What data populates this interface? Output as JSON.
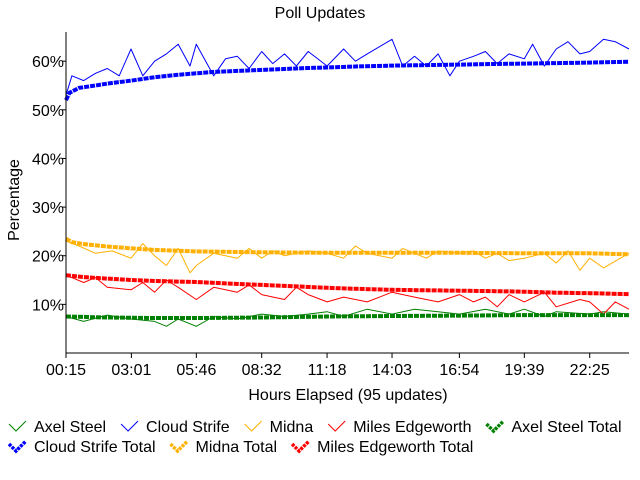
{
  "chart_data": {
    "type": "line",
    "title": "Poll Updates",
    "xlabel": "Hours Elapsed (95 updates)",
    "ylabel": "Percentage",
    "ylim": [
      0,
      66
    ],
    "xlim": [
      0.25,
      24.08
    ],
    "x_unit": "hours elapsed",
    "grid": false,
    "legend_position": "bottom",
    "x_tick_labels": [
      {
        "x": 0.25,
        "label": "00:15"
      },
      {
        "x": 3.017,
        "label": "03:01"
      },
      {
        "x": 5.767,
        "label": "05:46"
      },
      {
        "x": 8.533,
        "label": "08:32"
      },
      {
        "x": 11.3,
        "label": "11:18"
      },
      {
        "x": 14.05,
        "label": "14:03"
      },
      {
        "x": 16.9,
        "label": "16:54"
      },
      {
        "x": 19.65,
        "label": "19:39"
      },
      {
        "x": 22.417,
        "label": "22:25"
      }
    ],
    "y_ticks": [
      {
        "value": 10,
        "label": "10%"
      },
      {
        "value": 20,
        "label": "20%"
      },
      {
        "value": 30,
        "label": "30%"
      },
      {
        "value": 40,
        "label": "40%"
      },
      {
        "value": 50,
        "label": "50%"
      },
      {
        "value": 60,
        "label": "60%"
      }
    ],
    "series": [
      {
        "name": "Axel Steel",
        "kind": "update",
        "color": "#008000",
        "points": [
          [
            0.25,
            7.5
          ],
          [
            1.0,
            6.5
          ],
          [
            2.0,
            7.8
          ],
          [
            3.0,
            7.0
          ],
          [
            4.0,
            6.5
          ],
          [
            4.5,
            5.5
          ],
          [
            5.0,
            7.0
          ],
          [
            5.767,
            5.5
          ],
          [
            6.5,
            7.5
          ],
          [
            7.5,
            7.0
          ],
          [
            8.533,
            8.0
          ],
          [
            9.5,
            7.5
          ],
          [
            10.5,
            8.0
          ],
          [
            11.3,
            8.5
          ],
          [
            12.0,
            7.5
          ],
          [
            13.0,
            9.0
          ],
          [
            14.05,
            8.0
          ],
          [
            15.0,
            9.0
          ],
          [
            16.0,
            8.5
          ],
          [
            16.9,
            8.0
          ],
          [
            18.0,
            9.0
          ],
          [
            19.0,
            8.0
          ],
          [
            19.65,
            9.0
          ],
          [
            20.5,
            7.5
          ],
          [
            21.0,
            8.5
          ],
          [
            22.417,
            8.0
          ],
          [
            23.0,
            8.5
          ],
          [
            24.08,
            8.0
          ]
        ]
      },
      {
        "name": "Cloud Strife",
        "kind": "update",
        "color": "#0000ff",
        "points": [
          [
            0.25,
            53.0
          ],
          [
            0.5,
            57.0
          ],
          [
            1.0,
            56.0
          ],
          [
            1.5,
            57.5
          ],
          [
            2.0,
            58.5
          ],
          [
            2.5,
            57.0
          ],
          [
            3.0,
            62.5
          ],
          [
            3.5,
            57.0
          ],
          [
            4.0,
            60.0
          ],
          [
            4.5,
            61.5
          ],
          [
            5.0,
            63.5
          ],
          [
            5.5,
            59.0
          ],
          [
            5.767,
            63.5
          ],
          [
            6.5,
            57.0
          ],
          [
            7.0,
            60.5
          ],
          [
            7.5,
            61.0
          ],
          [
            8.0,
            58.5
          ],
          [
            8.533,
            62.0
          ],
          [
            9.0,
            59.5
          ],
          [
            9.5,
            61.5
          ],
          [
            10.0,
            59.0
          ],
          [
            10.5,
            62.0
          ],
          [
            11.3,
            59.0
          ],
          [
            12.0,
            62.5
          ],
          [
            12.5,
            60.0
          ],
          [
            13.0,
            61.5
          ],
          [
            14.05,
            64.5
          ],
          [
            14.5,
            59.0
          ],
          [
            15.0,
            61.0
          ],
          [
            15.5,
            59.0
          ],
          [
            16.0,
            61.5
          ],
          [
            16.5,
            57.0
          ],
          [
            16.9,
            60.0
          ],
          [
            17.5,
            61.0
          ],
          [
            18.0,
            62.0
          ],
          [
            18.5,
            59.5
          ],
          [
            19.0,
            61.5
          ],
          [
            19.65,
            60.5
          ],
          [
            20.0,
            63.5
          ],
          [
            20.5,
            59.0
          ],
          [
            21.0,
            62.5
          ],
          [
            21.5,
            64.0
          ],
          [
            22.0,
            61.5
          ],
          [
            22.417,
            62.0
          ],
          [
            23.0,
            64.5
          ],
          [
            23.5,
            64.0
          ],
          [
            24.08,
            62.5
          ]
        ]
      },
      {
        "name": "Midna",
        "kind": "update",
        "color": "#ffb000",
        "points": [
          [
            0.25,
            23.0
          ],
          [
            0.8,
            22.0
          ],
          [
            1.5,
            20.5
          ],
          [
            2.2,
            21.0
          ],
          [
            3.0,
            19.5
          ],
          [
            3.5,
            22.5
          ],
          [
            4.0,
            20.0
          ],
          [
            4.5,
            18.0
          ],
          [
            5.0,
            21.5
          ],
          [
            5.5,
            16.5
          ],
          [
            5.767,
            18.0
          ],
          [
            6.5,
            20.5
          ],
          [
            7.5,
            19.5
          ],
          [
            8.0,
            21.5
          ],
          [
            8.533,
            19.5
          ],
          [
            9.0,
            21.0
          ],
          [
            9.5,
            20.0
          ],
          [
            10.5,
            21.0
          ],
          [
            11.3,
            20.5
          ],
          [
            12.0,
            19.5
          ],
          [
            12.5,
            22.0
          ],
          [
            13.0,
            20.5
          ],
          [
            14.05,
            19.5
          ],
          [
            14.5,
            21.5
          ],
          [
            15.0,
            20.5
          ],
          [
            15.5,
            19.5
          ],
          [
            16.0,
            21.0
          ],
          [
            16.9,
            20.5
          ],
          [
            17.5,
            21.0
          ],
          [
            18.0,
            19.5
          ],
          [
            18.5,
            20.5
          ],
          [
            19.0,
            19.0
          ],
          [
            19.65,
            19.5
          ],
          [
            20.5,
            20.5
          ],
          [
            21.0,
            18.5
          ],
          [
            21.5,
            21.0
          ],
          [
            22.0,
            17.0
          ],
          [
            22.417,
            19.5
          ],
          [
            23.0,
            17.5
          ],
          [
            24.08,
            20.5
          ]
        ]
      },
      {
        "name": "Miles Edgeworth",
        "kind": "update",
        "color": "#ff0000",
        "points": [
          [
            0.25,
            16.0
          ],
          [
            1.0,
            14.5
          ],
          [
            1.5,
            15.5
          ],
          [
            2.0,
            13.5
          ],
          [
            3.0,
            13.0
          ],
          [
            3.5,
            14.5
          ],
          [
            4.0,
            12.5
          ],
          [
            4.5,
            15.0
          ],
          [
            5.0,
            13.5
          ],
          [
            5.767,
            11.0
          ],
          [
            6.5,
            13.5
          ],
          [
            7.5,
            12.5
          ],
          [
            8.0,
            14.0
          ],
          [
            8.533,
            12.0
          ],
          [
            9.5,
            11.0
          ],
          [
            10.0,
            13.5
          ],
          [
            10.5,
            12.0
          ],
          [
            11.3,
            10.5
          ],
          [
            12.0,
            11.5
          ],
          [
            13.0,
            10.5
          ],
          [
            14.05,
            12.5
          ],
          [
            15.0,
            11.5
          ],
          [
            16.0,
            10.5
          ],
          [
            16.9,
            12.0
          ],
          [
            17.5,
            10.5
          ],
          [
            18.0,
            11.5
          ],
          [
            18.5,
            9.5
          ],
          [
            19.0,
            12.0
          ],
          [
            19.65,
            10.5
          ],
          [
            20.5,
            12.5
          ],
          [
            21.0,
            9.5
          ],
          [
            22.0,
            11.0
          ],
          [
            22.417,
            10.5
          ],
          [
            23.0,
            8.0
          ],
          [
            23.5,
            10.5
          ],
          [
            24.08,
            9.0
          ]
        ]
      },
      {
        "name": "Axel Steel Total",
        "kind": "total",
        "color": "#008000",
        "points": [
          [
            0.25,
            7.5
          ],
          [
            2.0,
            7.3
          ],
          [
            4.0,
            7.2
          ],
          [
            6.0,
            7.2
          ],
          [
            8.533,
            7.3
          ],
          [
            11.3,
            7.5
          ],
          [
            14.05,
            7.6
          ],
          [
            16.9,
            7.7
          ],
          [
            19.65,
            7.8
          ],
          [
            22.417,
            7.8
          ],
          [
            24.08,
            7.8
          ]
        ]
      },
      {
        "name": "Cloud Strife Total",
        "kind": "total",
        "color": "#0000ff",
        "points": [
          [
            0.25,
            52.0
          ],
          [
            0.4,
            53.5
          ],
          [
            0.8,
            54.5
          ],
          [
            1.5,
            55.0
          ],
          [
            2.0,
            55.4
          ],
          [
            3.017,
            56.0
          ],
          [
            4.0,
            56.7
          ],
          [
            5.0,
            57.2
          ],
          [
            5.767,
            57.5
          ],
          [
            6.5,
            57.8
          ],
          [
            7.5,
            58.0
          ],
          [
            8.533,
            58.2
          ],
          [
            9.5,
            58.4
          ],
          [
            10.5,
            58.6
          ],
          [
            11.3,
            58.7
          ],
          [
            12.5,
            58.9
          ],
          [
            14.05,
            59.1
          ],
          [
            15.5,
            59.2
          ],
          [
            16.9,
            59.3
          ],
          [
            18.0,
            59.4
          ],
          [
            19.65,
            59.5
          ],
          [
            21.0,
            59.6
          ],
          [
            22.417,
            59.7
          ],
          [
            24.08,
            59.9
          ]
        ]
      },
      {
        "name": "Midna Total",
        "kind": "total",
        "color": "#ffb000",
        "points": [
          [
            0.25,
            23.5
          ],
          [
            0.5,
            22.8
          ],
          [
            1.0,
            22.4
          ],
          [
            2.0,
            21.9
          ],
          [
            3.017,
            21.5
          ],
          [
            4.0,
            21.2
          ],
          [
            5.767,
            20.9
          ],
          [
            7.0,
            20.8
          ],
          [
            8.533,
            20.7
          ],
          [
            11.3,
            20.6
          ],
          [
            14.05,
            20.6
          ],
          [
            16.9,
            20.6
          ],
          [
            19.65,
            20.5
          ],
          [
            22.417,
            20.5
          ],
          [
            24.08,
            20.3
          ]
        ]
      },
      {
        "name": "Miles Edgeworth Total",
        "kind": "total",
        "color": "#ff0000",
        "points": [
          [
            0.25,
            16.0
          ],
          [
            1.0,
            15.6
          ],
          [
            2.0,
            15.3
          ],
          [
            3.017,
            15.0
          ],
          [
            4.0,
            14.8
          ],
          [
            5.767,
            14.6
          ],
          [
            7.0,
            14.3
          ],
          [
            8.533,
            14.0
          ],
          [
            10.0,
            13.7
          ],
          [
            11.3,
            13.4
          ],
          [
            12.5,
            13.2
          ],
          [
            14.05,
            13.0
          ],
          [
            15.5,
            12.9
          ],
          [
            16.9,
            12.8
          ],
          [
            18.5,
            12.7
          ],
          [
            19.65,
            12.6
          ],
          [
            21.0,
            12.4
          ],
          [
            22.417,
            12.3
          ],
          [
            24.08,
            12.1
          ]
        ]
      }
    ],
    "legend": [
      {
        "label": "Axel Steel",
        "series": "Axel Steel"
      },
      {
        "label": "Cloud Strife",
        "series": "Cloud Strife"
      },
      {
        "label": "Midna",
        "series": "Midna"
      },
      {
        "label": "Miles Edgeworth",
        "series": "Miles Edgeworth"
      },
      {
        "label": "Axel Steel Total",
        "series": "Axel Steel Total"
      },
      {
        "label": "Cloud Strife Total",
        "series": "Cloud Strife Total"
      },
      {
        "label": "Midna Total",
        "series": "Midna Total"
      },
      {
        "label": "Miles Edgeworth Total",
        "series": "Miles Edgeworth Total"
      }
    ]
  }
}
